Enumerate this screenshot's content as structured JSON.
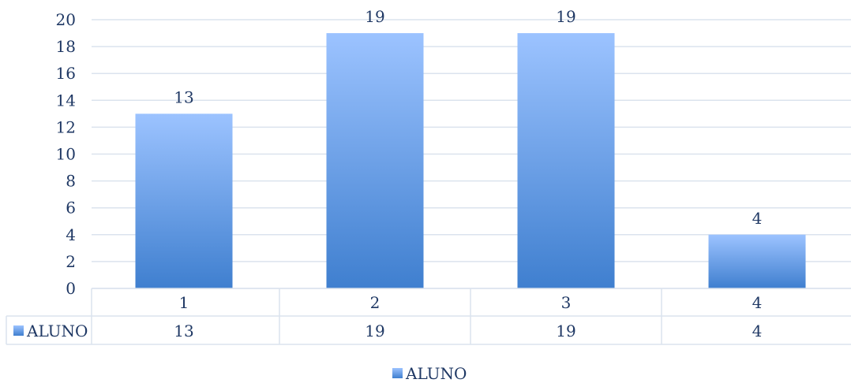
{
  "chart_data": {
    "type": "bar",
    "categories": [
      "1",
      "2",
      "3",
      "4"
    ],
    "series": [
      {
        "name": "ALUNO",
        "values": [
          13,
          19,
          19,
          4
        ]
      }
    ],
    "ylim": [
      0,
      20
    ],
    "yticks": [
      0,
      2,
      4,
      6,
      8,
      10,
      12,
      14,
      16,
      18,
      20
    ],
    "grid": true,
    "legend_position": "bottom",
    "data_table": true,
    "colors": {
      "bar_top": "#9cc3ff",
      "bar_bottom": "#3f7fcf",
      "grid": "#dbe3ee",
      "text": "#1f3864"
    }
  }
}
